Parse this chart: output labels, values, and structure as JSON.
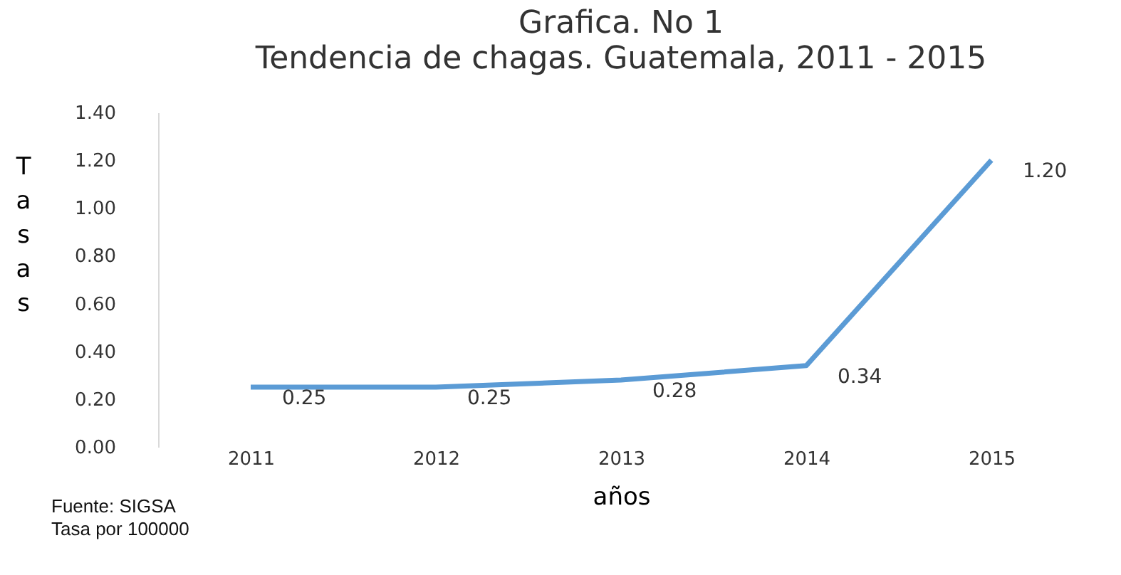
{
  "chart_data": {
    "type": "line",
    "title": "Grafica. No 1",
    "subtitle": "Tendencia de chagas. Guatemala, 2011 - 2015",
    "xlabel": "años",
    "ylabel": "Tasas",
    "categories": [
      "2011",
      "2012",
      "2013",
      "2014",
      "2015"
    ],
    "series": [
      {
        "color": "#5b9bd5",
        "values": [
          0.25,
          0.25,
          0.28,
          0.34,
          1.2
        ],
        "value_labels": [
          "0.25",
          "0.25",
          "0.28",
          "0.34",
          "1.20"
        ]
      }
    ],
    "ylim": [
      0,
      1.4
    ],
    "yticks": [
      {
        "value": 0,
        "label": "0.00"
      },
      {
        "value": 0.2,
        "label": "0.20"
      },
      {
        "value": 0.4,
        "label": "0.40"
      },
      {
        "value": 0.6,
        "label": "0.60"
      },
      {
        "value": 0.8,
        "label": "0.80"
      },
      {
        "value": 1.0,
        "label": "1.00"
      },
      {
        "value": 1.2,
        "label": "1.20"
      },
      {
        "value": 1.4,
        "label": "1.40"
      }
    ],
    "grid": false,
    "marker": "none",
    "line_style": "solid",
    "annotations": [
      "Fuente: SIGSA",
      "Tasa por 100000"
    ]
  }
}
